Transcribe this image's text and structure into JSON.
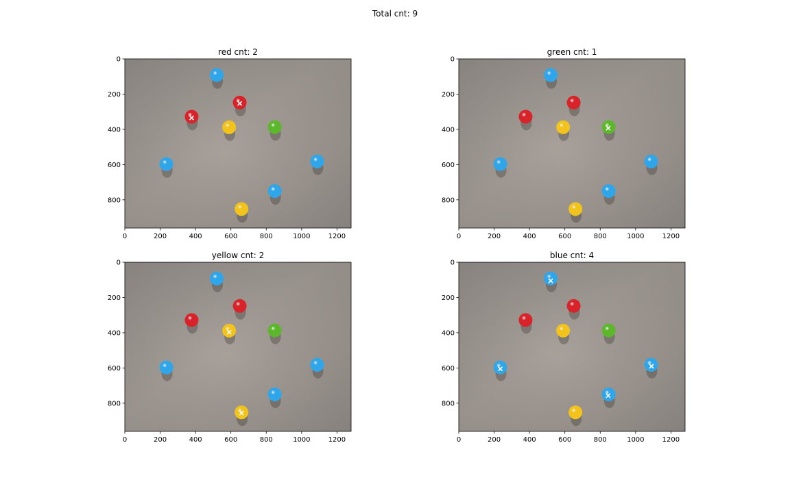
{
  "figure": {
    "suptitle": "Total cnt: 9"
  },
  "colors": {
    "red": "#d8232a",
    "green": "#5cb82a",
    "yellow": "#f2c31a",
    "blue": "#2fa6ea",
    "marker": "#ffffff",
    "background": "#9a948f"
  },
  "chart_data": [
    {
      "type": "scatter",
      "title": "red cnt: 2",
      "xlim": [
        0,
        1280
      ],
      "ylim": [
        960,
        0
      ],
      "xticks": [
        0,
        200,
        400,
        600,
        800,
        1000,
        1200
      ],
      "yticks": [
        0,
        200,
        400,
        600,
        800
      ],
      "grid": false,
      "series": [
        {
          "marker": "x",
          "x": [
            650,
            378
          ],
          "y": [
            253,
            335
          ]
        }
      ]
    },
    {
      "type": "scatter",
      "title": "green cnt: 1",
      "xlim": [
        0,
        1280
      ],
      "ylim": [
        960,
        0
      ],
      "xticks": [
        0,
        200,
        400,
        600,
        800,
        1000,
        1200
      ],
      "yticks": [
        0,
        200,
        400,
        600,
        800
      ],
      "grid": false,
      "series": [
        {
          "marker": "x",
          "x": [
            845
          ],
          "y": [
            393
          ]
        }
      ]
    },
    {
      "type": "scatter",
      "title": "yellow cnt: 2",
      "xlim": [
        0,
        1280
      ],
      "ylim": [
        960,
        0
      ],
      "xticks": [
        0,
        200,
        400,
        600,
        800,
        1000,
        1200
      ],
      "yticks": [
        0,
        200,
        400,
        600,
        800
      ],
      "grid": false,
      "series": [
        {
          "marker": "x",
          "x": [
            590,
            660
          ],
          "y": [
            397,
            856
          ]
        }
      ]
    },
    {
      "type": "scatter",
      "title": "blue cnt: 4",
      "xlim": [
        0,
        1280
      ],
      "ylim": [
        960,
        0
      ],
      "xticks": [
        0,
        200,
        400,
        600,
        800,
        1000,
        1200
      ],
      "yticks": [
        0,
        200,
        400,
        600,
        800
      ],
      "grid": false,
      "series": [
        {
          "marker": "x",
          "x": [
            520,
            235,
            1090,
            845
          ],
          "y": [
            105,
            605,
            590,
            757
          ]
        }
      ]
    }
  ],
  "candies": [
    {
      "color": "blue",
      "x": 520,
      "y": 92
    },
    {
      "color": "red",
      "x": 650,
      "y": 248
    },
    {
      "color": "red",
      "x": 378,
      "y": 328
    },
    {
      "color": "yellow",
      "x": 590,
      "y": 388
    },
    {
      "color": "green",
      "x": 848,
      "y": 387
    },
    {
      "color": "blue",
      "x": 235,
      "y": 597
    },
    {
      "color": "blue",
      "x": 1088,
      "y": 582
    },
    {
      "color": "blue",
      "x": 848,
      "y": 750
    },
    {
      "color": "yellow",
      "x": 660,
      "y": 852
    }
  ]
}
